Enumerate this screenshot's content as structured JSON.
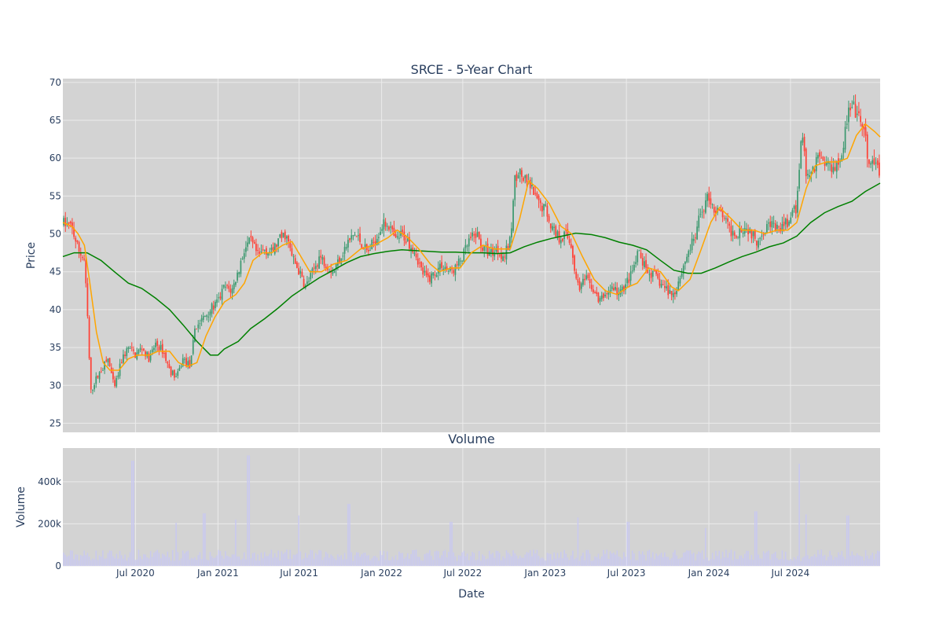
{
  "chart_data": {
    "type": "candlestick",
    "title": "SRCE - 5-Year Chart",
    "subplot_title": "Volume",
    "x_tick_labels": [
      "Jul 2020",
      "Jan 2021",
      "Jul 2021",
      "Jan 2022",
      "Jul 2022",
      "Jan 2023",
      "Jul 2023",
      "Jan 2024",
      "Jul 2024"
    ],
    "xlabel": "Date",
    "x_range": [
      "2020-01-21",
      "2025-01-17"
    ],
    "price_axis": {
      "label": "Price",
      "range": [
        23.8,
        70.5
      ],
      "ticks": [
        25,
        30,
        35,
        40,
        45,
        50,
        55,
        60,
        65,
        70
      ]
    },
    "volume_axis": {
      "label": "Volume",
      "range": [
        0,
        560000
      ],
      "ticks": [
        0,
        200000,
        400000
      ],
      "tick_labels": [
        "0",
        "200k",
        "400k"
      ]
    },
    "colors": {
      "up": "#3d9970",
      "down": "#ff4136",
      "ma_short": "#ffa500",
      "ma_long": "#008000",
      "volume": "#c9c9f0",
      "plot_bg": "#d3d3d3",
      "grid": "#ebebeb"
    },
    "price_path": [
      [
        "2020-01-21",
        51.5
      ],
      [
        "2020-02-10",
        50.8
      ],
      [
        "2020-02-24",
        48.0
      ],
      [
        "2020-03-09",
        46.5
      ],
      [
        "2020-03-16",
        39.0
      ],
      [
        "2020-03-23",
        29.0
      ],
      [
        "2020-04-01",
        30.5
      ],
      [
        "2020-04-15",
        32.0
      ],
      [
        "2020-05-01",
        33.5
      ],
      [
        "2020-05-15",
        29.5
      ],
      [
        "2020-06-01",
        33.5
      ],
      [
        "2020-06-15",
        35.0
      ],
      [
        "2020-07-01",
        34.0
      ],
      [
        "2020-07-15",
        35.0
      ],
      [
        "2020-08-01",
        33.5
      ],
      [
        "2020-08-15",
        35.5
      ],
      [
        "2020-09-01",
        34.5
      ],
      [
        "2020-09-15",
        32.0
      ],
      [
        "2020-10-01",
        31.0
      ],
      [
        "2020-10-15",
        33.5
      ],
      [
        "2020-11-01",
        32.5
      ],
      [
        "2020-11-10",
        37.5
      ],
      [
        "2020-12-01",
        39.0
      ],
      [
        "2020-12-15",
        40.0
      ],
      [
        "2021-01-01",
        41.0
      ],
      [
        "2021-01-15",
        43.0
      ],
      [
        "2021-02-01",
        42.5
      ],
      [
        "2021-02-15",
        45.0
      ],
      [
        "2021-03-01",
        48.0
      ],
      [
        "2021-03-15",
        49.0
      ],
      [
        "2021-04-01",
        47.0
      ],
      [
        "2021-04-15",
        48.0
      ],
      [
        "2021-05-01",
        47.5
      ],
      [
        "2021-05-15",
        49.0
      ],
      [
        "2021-06-01",
        50.0
      ],
      [
        "2021-06-15",
        47.0
      ],
      [
        "2021-07-01",
        45.0
      ],
      [
        "2021-07-15",
        43.0
      ],
      [
        "2021-08-01",
        45.0
      ],
      [
        "2021-08-15",
        47.0
      ],
      [
        "2021-09-01",
        46.0
      ],
      [
        "2021-09-15",
        45.0
      ],
      [
        "2021-10-01",
        47.0
      ],
      [
        "2021-10-15",
        48.5
      ],
      [
        "2021-11-01",
        50.0
      ],
      [
        "2021-11-15",
        49.0
      ],
      [
        "2021-12-01",
        47.5
      ],
      [
        "2021-12-15",
        49.0
      ],
      [
        "2022-01-01",
        51.0
      ],
      [
        "2022-01-15",
        51.5
      ],
      [
        "2022-02-01",
        49.0
      ],
      [
        "2022-02-15",
        50.0
      ],
      [
        "2022-03-01",
        49.0
      ],
      [
        "2022-03-15",
        48.0
      ],
      [
        "2022-04-01",
        45.0
      ],
      [
        "2022-04-15",
        44.0
      ],
      [
        "2022-05-01",
        45.0
      ],
      [
        "2022-05-15",
        46.0
      ],
      [
        "2022-06-01",
        45.0
      ],
      [
        "2022-06-15",
        45.5
      ],
      [
        "2022-07-01",
        47.0
      ],
      [
        "2022-07-15",
        49.0
      ],
      [
        "2022-08-01",
        50.0
      ],
      [
        "2022-08-15",
        48.0
      ],
      [
        "2022-09-01",
        47.5
      ],
      [
        "2022-09-15",
        48.0
      ],
      [
        "2022-10-01",
        47.0
      ],
      [
        "2022-10-15",
        49.0
      ],
      [
        "2022-10-25",
        57.0
      ],
      [
        "2022-11-01",
        58.5
      ],
      [
        "2022-11-15",
        57.0
      ],
      [
        "2022-12-01",
        56.0
      ],
      [
        "2022-12-15",
        54.0
      ],
      [
        "2023-01-01",
        53.5
      ],
      [
        "2023-01-15",
        51.0
      ],
      [
        "2023-02-01",
        49.5
      ],
      [
        "2023-02-15",
        50.0
      ],
      [
        "2023-03-01",
        48.5
      ],
      [
        "2023-03-10",
        44.0
      ],
      [
        "2023-03-20",
        43.0
      ],
      [
        "2023-04-01",
        44.0
      ],
      [
        "2023-04-15",
        43.0
      ],
      [
        "2023-05-01",
        41.0
      ],
      [
        "2023-05-15",
        42.0
      ],
      [
        "2023-06-01",
        43.0
      ],
      [
        "2023-06-15",
        42.0
      ],
      [
        "2023-07-01",
        43.5
      ],
      [
        "2023-07-15",
        45.0
      ],
      [
        "2023-07-28",
        47.5
      ],
      [
        "2023-08-15",
        45.0
      ],
      [
        "2023-09-01",
        44.5
      ],
      [
        "2023-09-15",
        43.5
      ],
      [
        "2023-10-01",
        42.5
      ],
      [
        "2023-10-15",
        42.0
      ],
      [
        "2023-11-01",
        45.0
      ],
      [
        "2023-11-15",
        47.5
      ],
      [
        "2023-12-01",
        49.5
      ],
      [
        "2023-12-15",
        53.0
      ],
      [
        "2024-01-01",
        55.0
      ],
      [
        "2024-01-15",
        53.0
      ],
      [
        "2024-02-01",
        52.5
      ],
      [
        "2024-02-15",
        50.5
      ],
      [
        "2024-03-01",
        50.0
      ],
      [
        "2024-03-15",
        51.0
      ],
      [
        "2024-04-01",
        50.5
      ],
      [
        "2024-04-15",
        49.0
      ],
      [
        "2024-05-01",
        50.5
      ],
      [
        "2024-05-15",
        51.5
      ],
      [
        "2024-06-01",
        50.5
      ],
      [
        "2024-06-15",
        51.0
      ],
      [
        "2024-07-01",
        52.0
      ],
      [
        "2024-07-15",
        53.5
      ],
      [
        "2024-07-22",
        60.5
      ],
      [
        "2024-07-26",
        64.0
      ],
      [
        "2024-08-05",
        58.0
      ],
      [
        "2024-08-15",
        57.5
      ],
      [
        "2024-09-01",
        60.5
      ],
      [
        "2024-09-15",
        59.5
      ],
      [
        "2024-10-01",
        59.0
      ],
      [
        "2024-10-15",
        59.5
      ],
      [
        "2024-10-25",
        61.0
      ],
      [
        "2024-11-06",
        66.0
      ],
      [
        "2024-11-20",
        66.5
      ],
      [
        "2024-12-05",
        64.5
      ],
      [
        "2024-12-15",
        63.0
      ],
      [
        "2024-12-20",
        59.0
      ],
      [
        "2025-01-06",
        59.0
      ],
      [
        "2025-01-17",
        58.5
      ]
    ],
    "ma_short": [
      [
        "2020-01-21",
        51.5
      ],
      [
        "2020-02-10",
        51.0
      ],
      [
        "2020-02-24",
        50.0
      ],
      [
        "2020-03-09",
        48.5
      ],
      [
        "2020-03-20",
        44.0
      ],
      [
        "2020-04-05",
        37.0
      ],
      [
        "2020-04-20",
        33.0
      ],
      [
        "2020-05-05",
        32.0
      ],
      [
        "2020-05-25",
        32.0
      ],
      [
        "2020-06-15",
        33.5
      ],
      [
        "2020-07-05",
        34.0
      ],
      [
        "2020-08-01",
        34.0
      ],
      [
        "2020-08-20",
        34.5
      ],
      [
        "2020-09-15",
        34.5
      ],
      [
        "2020-10-05",
        33.0
      ],
      [
        "2020-10-25",
        32.5
      ],
      [
        "2020-11-15",
        33.0
      ],
      [
        "2020-12-05",
        36.5
      ],
      [
        "2020-12-25",
        39.0
      ],
      [
        "2021-01-15",
        41.0
      ],
      [
        "2021-02-10",
        42.0
      ],
      [
        "2021-03-01",
        43.5
      ],
      [
        "2021-03-20",
        46.5
      ],
      [
        "2021-04-10",
        47.5
      ],
      [
        "2021-05-01",
        47.5
      ],
      [
        "2021-05-25",
        48.5
      ],
      [
        "2021-06-15",
        49.0
      ],
      [
        "2021-07-05",
        47.0
      ],
      [
        "2021-07-25",
        45.0
      ],
      [
        "2021-08-20",
        45.0
      ],
      [
        "2021-09-15",
        46.0
      ],
      [
        "2021-10-15",
        46.5
      ],
      [
        "2021-11-15",
        48.0
      ],
      [
        "2021-12-15",
        48.5
      ],
      [
        "2022-01-15",
        49.5
      ],
      [
        "2022-02-05",
        50.5
      ],
      [
        "2022-03-01",
        49.5
      ],
      [
        "2022-03-25",
        48.0
      ],
      [
        "2022-04-20",
        46.0
      ],
      [
        "2022-05-10",
        45.0
      ],
      [
        "2022-06-05",
        45.5
      ],
      [
        "2022-06-25",
        45.5
      ],
      [
        "2022-07-20",
        47.5
      ],
      [
        "2022-08-15",
        48.5
      ],
      [
        "2022-09-10",
        48.0
      ],
      [
        "2022-10-15",
        48.0
      ],
      [
        "2022-11-05",
        52.0
      ],
      [
        "2022-11-25",
        57.0
      ],
      [
        "2022-12-15",
        56.0
      ],
      [
        "2023-01-10",
        54.0
      ],
      [
        "2023-02-05",
        51.0
      ],
      [
        "2023-03-01",
        50.0
      ],
      [
        "2023-03-25",
        47.0
      ],
      [
        "2023-04-20",
        44.0
      ],
      [
        "2023-05-15",
        42.5
      ],
      [
        "2023-06-10",
        42.0
      ],
      [
        "2023-07-05",
        43.0
      ],
      [
        "2023-07-25",
        43.5
      ],
      [
        "2023-08-20",
        45.5
      ],
      [
        "2023-09-15",
        45.0
      ],
      [
        "2023-10-10",
        43.0
      ],
      [
        "2023-10-25",
        42.5
      ],
      [
        "2023-11-20",
        44.0
      ],
      [
        "2023-12-15",
        48.0
      ],
      [
        "2024-01-05",
        51.5
      ],
      [
        "2024-01-25",
        53.5
      ],
      [
        "2024-02-20",
        52.0
      ],
      [
        "2024-03-15",
        50.5
      ],
      [
        "2024-04-10",
        50.5
      ],
      [
        "2024-05-05",
        50.0
      ],
      [
        "2024-06-01",
        50.5
      ],
      [
        "2024-06-25",
        50.5
      ],
      [
        "2024-07-15",
        51.5
      ],
      [
        "2024-08-05",
        56.0
      ],
      [
        "2024-08-25",
        59.0
      ],
      [
        "2024-09-20",
        59.5
      ],
      [
        "2024-10-15",
        59.5
      ],
      [
        "2024-11-05",
        60.0
      ],
      [
        "2024-11-25",
        63.0
      ],
      [
        "2024-12-15",
        64.5
      ],
      [
        "2025-01-05",
        63.5
      ],
      [
        "2025-01-17",
        62.8
      ]
    ],
    "ma_long": [
      [
        "2020-01-21",
        47.0
      ],
      [
        "2020-02-15",
        47.5
      ],
      [
        "2020-03-15",
        47.5
      ],
      [
        "2020-04-15",
        46.5
      ],
      [
        "2020-05-15",
        45.0
      ],
      [
        "2020-06-15",
        43.5
      ],
      [
        "2020-07-15",
        42.8
      ],
      [
        "2020-08-15",
        41.5
      ],
      [
        "2020-09-15",
        40.0
      ],
      [
        "2020-10-15",
        38.0
      ],
      [
        "2020-11-15",
        35.8
      ],
      [
        "2020-12-15",
        34.0
      ],
      [
        "2021-01-01",
        34.0
      ],
      [
        "2021-01-15",
        34.8
      ],
      [
        "2021-02-15",
        35.8
      ],
      [
        "2021-03-15",
        37.5
      ],
      [
        "2021-04-15",
        38.8
      ],
      [
        "2021-05-15",
        40.2
      ],
      [
        "2021-06-15",
        41.8
      ],
      [
        "2021-07-15",
        43.0
      ],
      [
        "2021-08-15",
        44.2
      ],
      [
        "2021-09-15",
        45.2
      ],
      [
        "2021-10-15",
        46.2
      ],
      [
        "2021-11-15",
        47.0
      ],
      [
        "2021-12-15",
        47.4
      ],
      [
        "2022-01-15",
        47.7
      ],
      [
        "2022-02-15",
        47.9
      ],
      [
        "2022-03-15",
        47.8
      ],
      [
        "2022-04-15",
        47.7
      ],
      [
        "2022-05-15",
        47.6
      ],
      [
        "2022-06-15",
        47.6
      ],
      [
        "2022-07-15",
        47.5
      ],
      [
        "2022-08-15",
        47.5
      ],
      [
        "2022-09-15",
        47.4
      ],
      [
        "2022-10-15",
        47.5
      ],
      [
        "2022-11-15",
        48.3
      ],
      [
        "2022-12-15",
        48.9
      ],
      [
        "2023-01-15",
        49.4
      ],
      [
        "2023-02-15",
        49.8
      ],
      [
        "2023-03-10",
        50.1
      ],
      [
        "2023-04-15",
        49.9
      ],
      [
        "2023-05-15",
        49.5
      ],
      [
        "2023-06-15",
        48.9
      ],
      [
        "2023-07-15",
        48.5
      ],
      [
        "2023-08-15",
        47.9
      ],
      [
        "2023-09-15",
        46.5
      ],
      [
        "2023-10-15",
        45.2
      ],
      [
        "2023-11-15",
        44.8
      ],
      [
        "2023-12-15",
        44.8
      ],
      [
        "2024-01-15",
        45.5
      ],
      [
        "2024-02-15",
        46.3
      ],
      [
        "2024-03-15",
        47.0
      ],
      [
        "2024-04-15",
        47.6
      ],
      [
        "2024-05-15",
        48.3
      ],
      [
        "2024-06-15",
        48.8
      ],
      [
        "2024-07-15",
        49.7
      ],
      [
        "2024-08-15",
        51.5
      ],
      [
        "2024-09-15",
        52.8
      ],
      [
        "2024-10-15",
        53.6
      ],
      [
        "2024-11-15",
        54.3
      ],
      [
        "2024-12-15",
        55.6
      ],
      [
        "2025-01-17",
        56.7
      ]
    ],
    "volume_spikes": [
      [
        "2020-06-25",
        500000
      ],
      [
        "2020-10-01",
        205000
      ],
      [
        "2020-12-01",
        250000
      ],
      [
        "2021-02-10",
        220000
      ],
      [
        "2021-03-10",
        525000
      ],
      [
        "2021-06-30",
        240000
      ],
      [
        "2021-10-20",
        295000
      ],
      [
        "2022-06-05",
        210000
      ],
      [
        "2023-03-15",
        230000
      ],
      [
        "2023-07-05",
        210000
      ],
      [
        "2023-12-25",
        180000
      ],
      [
        "2024-04-15",
        260000
      ],
      [
        "2024-07-22",
        485000
      ],
      [
        "2024-08-05",
        245000
      ],
      [
        "2024-11-06",
        240000
      ]
    ],
    "volume_typical": 60000
  }
}
